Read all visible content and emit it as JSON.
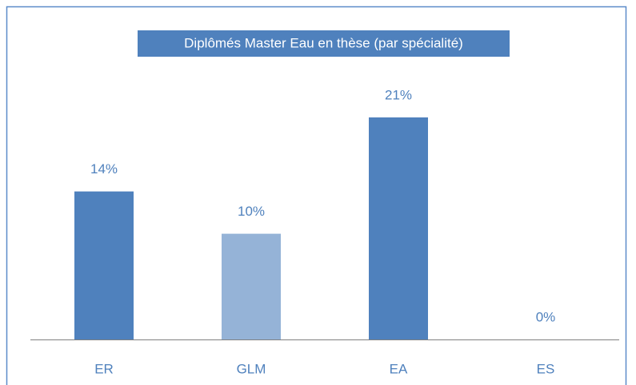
{
  "chart_data": {
    "type": "bar",
    "title": "Diplômés Master Eau en thèse (par spécialité)",
    "categories": [
      "ER",
      "GLM",
      "EA",
      "ES"
    ],
    "values": [
      14,
      10,
      21,
      0
    ],
    "value_labels": [
      "14%",
      "10%",
      "21%",
      "0%"
    ],
    "colors": [
      "#4f81bd",
      "#95b3d7",
      "#4f81bd",
      "#4f81bd"
    ]
  }
}
